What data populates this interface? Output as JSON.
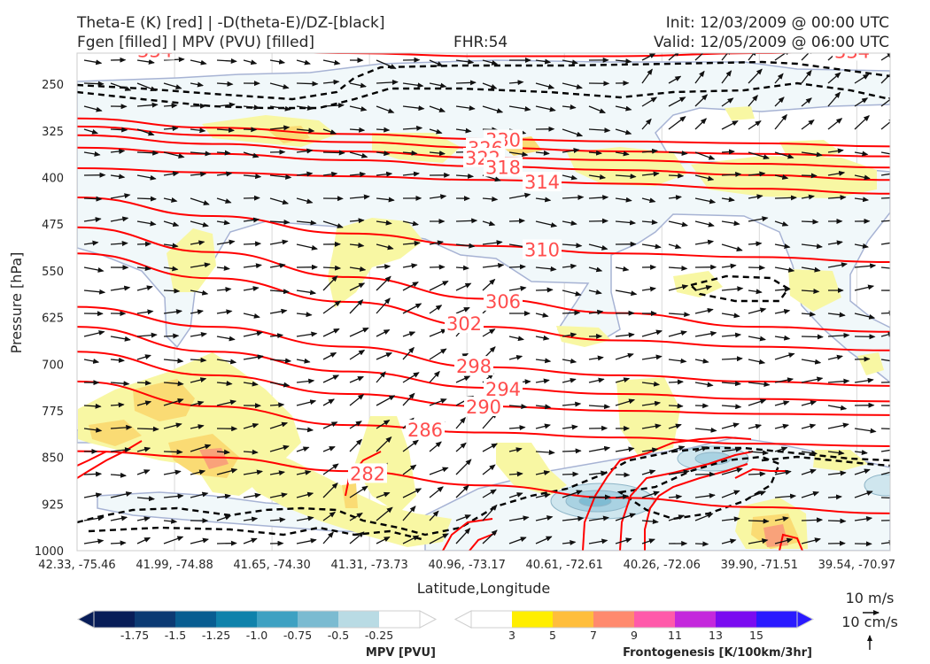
{
  "header": {
    "title_line1": "Theta-E (K) [red] | -D(theta-E)/DZ-[black]",
    "title_line2": "Fgen [filled] | MPV (PVU) [filled]",
    "forecast_hour": "FHR:54",
    "init": "Init: 12/03/2009 @ 00:00 UTC",
    "valid": "Valid: 12/05/2009 @ 06:00 UTC"
  },
  "chart_data": {
    "type": "cross-section",
    "xlabel": "Latitude,Longitude",
    "ylabel": "Pressure [hPa]",
    "y_ticks": [
      "250",
      "325",
      "400",
      "475",
      "550",
      "625",
      "700",
      "775",
      "850",
      "925",
      "1000"
    ],
    "x_ticks": [
      "42.33, -75.46",
      "41.99, -74.88",
      "41.65, -74.30",
      "41.31, -73.73",
      "40.96, -73.17",
      "40.61, -72.61",
      "40.26, -72.06",
      "39.90, -71.51",
      "39.54, -70.97"
    ],
    "ylim": [
      1000,
      200
    ],
    "theta_e_contours": [
      {
        "label": "334",
        "p": [
          195,
          195,
          200,
          205,
          205,
          200,
          195
        ]
      },
      {
        "label": "330",
        "p": [
          305,
          320,
          330,
          338,
          342,
          345,
          350
        ]
      },
      {
        "label": "326",
        "p": [
          318,
          332,
          343,
          352,
          358,
          362,
          366
        ]
      },
      {
        "label": "322",
        "p": [
          332,
          346,
          358,
          368,
          372,
          378,
          384
        ]
      },
      {
        "label": "318",
        "p": [
          352,
          362,
          372,
          382,
          388,
          396,
          404
        ]
      },
      {
        "label": "314",
        "p": [
          385,
          392,
          398,
          404,
          410,
          418,
          426
        ]
      },
      {
        "label": "310",
        "p": [
          432,
          462,
          490,
          510,
          522,
          528,
          536
        ]
      },
      {
        "label": "306",
        "p": [
          480,
          520,
          560,
          595,
          618,
          640,
          648
        ]
      },
      {
        "label": "302",
        "p": [
          522,
          562,
          600,
          640,
          662,
          672,
          678
        ]
      },
      {
        "label": "298",
        "p": [
          608,
          640,
          672,
          705,
          718,
          728,
          735
        ]
      },
      {
        "label": "294",
        "p": [
          640,
          680,
          712,
          738,
          748,
          756,
          760
        ]
      },
      {
        "label": "290",
        "p": [
          680,
          718,
          748,
          768,
          775,
          780,
          782
        ]
      },
      {
        "label": "286",
        "p": [
          728,
          768,
          798,
          810,
          818,
          828,
          832
        ]
      },
      {
        "label": "282",
        "p": [
          840,
          850,
          872,
          895,
          915,
          930,
          940
        ]
      }
    ],
    "mpv_colorbar": {
      "title": "MPV [PVU]",
      "ticks": [
        "-1.75",
        "-1.5",
        "-1.25",
        "-1.0",
        "-0.75",
        "-0.5",
        "-0.25"
      ],
      "colors": [
        "#081d58",
        "#0c3a73",
        "#085d91",
        "#0f82ab",
        "#3ea1c2",
        "#7bbbd1",
        "#b9dbe4",
        "#ffffff"
      ]
    },
    "fgen_colorbar": {
      "title": "Frontogenesis [K/100km/3hr]",
      "ticks": [
        "3",
        "5",
        "7",
        "9",
        "11",
        "13",
        "15"
      ],
      "colors": [
        "#ffffff",
        "#ffee00",
        "#ffbe3c",
        "#ff8a6e",
        "#ff5aaa",
        "#c428dc",
        "#7a0cf0",
        "#2a1aff"
      ]
    },
    "vector_keys": {
      "wind": "10 m/s",
      "vertical": "10 cm/s"
    }
  },
  "colors": {
    "theta_e": "#ff0000",
    "stability": "#000000",
    "mpv_outline": "#a7b3d4",
    "fgen_light": "#f7f7a0"
  }
}
